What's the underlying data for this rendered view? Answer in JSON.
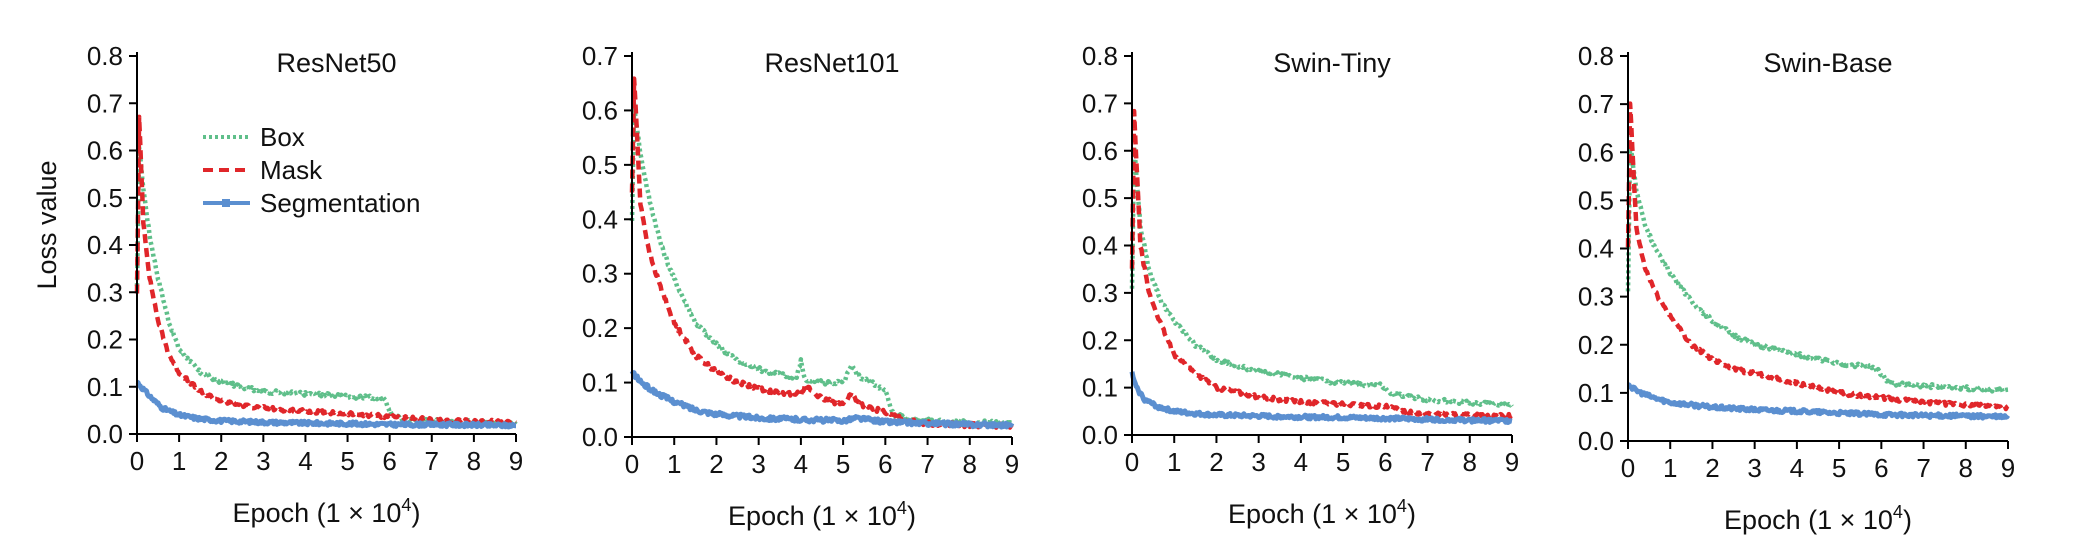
{
  "figure": {
    "ylabel": "Loss value",
    "xlabel_prefix": "Epoch (1 × 10",
    "xlabel_sup": "4",
    "xlabel_suffix": ")"
  },
  "legend": [
    {
      "label": "Box",
      "color": "#5fbf8a",
      "style": "dotted"
    },
    {
      "label": "Mask",
      "color": "#e0262a",
      "style": "dashed"
    },
    {
      "label": "Segmentation",
      "color": "#5b8fd0",
      "style": "solid-marker"
    }
  ],
  "chart_data": [
    {
      "type": "line",
      "title": "ResNet50",
      "xlim": [
        0,
        9
      ],
      "ylim": [
        0,
        0.8
      ],
      "xticks": [
        "0",
        "1",
        "2",
        "3",
        "4",
        "5",
        "6",
        "7",
        "8",
        "9"
      ],
      "yticks": [
        "0.0",
        "0.1",
        "0.2",
        "0.3",
        "0.4",
        "0.5",
        "0.6",
        "0.7",
        "0.8"
      ],
      "series": [
        {
          "name": "Box",
          "x": [
            0,
            0.05,
            0.15,
            0.3,
            0.5,
            0.75,
            1.0,
            1.5,
            2.0,
            2.5,
            3.0,
            4.0,
            5.0,
            5.9,
            6.0,
            6.3,
            7.0,
            8.0,
            9.0
          ],
          "y": [
            0.31,
            0.61,
            0.52,
            0.42,
            0.33,
            0.24,
            0.18,
            0.13,
            0.11,
            0.1,
            0.09,
            0.085,
            0.08,
            0.075,
            0.045,
            0.032,
            0.028,
            0.025,
            0.022
          ]
        },
        {
          "name": "Mask",
          "x": [
            0,
            0.05,
            0.15,
            0.3,
            0.5,
            0.75,
            1.0,
            1.5,
            2.0,
            2.5,
            3.0,
            4.0,
            5.0,
            6.0,
            7.0,
            8.0,
            9.0
          ],
          "y": [
            0.3,
            0.67,
            0.45,
            0.33,
            0.24,
            0.17,
            0.13,
            0.09,
            0.07,
            0.06,
            0.055,
            0.048,
            0.043,
            0.037,
            0.03,
            0.027,
            0.025
          ]
        },
        {
          "name": "Segmentation",
          "x": [
            0,
            0.1,
            0.3,
            0.6,
            1.0,
            1.5,
            2.0,
            3.0,
            4.0,
            5.0,
            6.0,
            7.0,
            8.0,
            9.0
          ],
          "y": [
            0.11,
            0.1,
            0.08,
            0.055,
            0.04,
            0.032,
            0.028,
            0.025,
            0.023,
            0.022,
            0.02,
            0.02,
            0.019,
            0.018
          ]
        }
      ]
    },
    {
      "type": "line",
      "title": "ResNet101",
      "xlim": [
        0,
        9
      ],
      "ylim": [
        0,
        0.7
      ],
      "xticks": [
        "0",
        "1",
        "2",
        "3",
        "4",
        "5",
        "6",
        "7",
        "8",
        "9"
      ],
      "yticks": [
        "0.0",
        "0.1",
        "0.2",
        "0.3",
        "0.4",
        "0.5",
        "0.6",
        "0.7"
      ],
      "series": [
        {
          "name": "Box",
          "x": [
            0,
            0.05,
            0.2,
            0.4,
            0.7,
            1.0,
            1.5,
            2.0,
            2.5,
            3.0,
            3.5,
            3.9,
            4.0,
            4.1,
            4.5,
            5.0,
            5.2,
            5.4,
            5.8,
            6.0,
            6.2,
            7.0,
            8.0,
            9.0
          ],
          "y": [
            0.4,
            0.61,
            0.52,
            0.44,
            0.35,
            0.29,
            0.21,
            0.17,
            0.14,
            0.125,
            0.115,
            0.11,
            0.14,
            0.105,
            0.1,
            0.1,
            0.13,
            0.11,
            0.095,
            0.085,
            0.04,
            0.03,
            0.027,
            0.025
          ]
        },
        {
          "name": "Mask",
          "x": [
            0,
            0.05,
            0.2,
            0.4,
            0.7,
            1.0,
            1.5,
            2.0,
            2.5,
            3.0,
            3.5,
            4.0,
            4.1,
            4.5,
            5.0,
            5.2,
            5.4,
            6.0,
            6.5,
            7.0,
            8.0,
            9.0
          ],
          "y": [
            0.45,
            0.66,
            0.43,
            0.34,
            0.27,
            0.21,
            0.15,
            0.12,
            0.1,
            0.09,
            0.08,
            0.08,
            0.095,
            0.07,
            0.06,
            0.08,
            0.06,
            0.045,
            0.03,
            0.025,
            0.022,
            0.02
          ]
        },
        {
          "name": "Segmentation",
          "x": [
            0,
            0.1,
            0.3,
            0.6,
            1.0,
            1.5,
            2.0,
            3.0,
            4.0,
            5.0,
            5.3,
            6.0,
            7.0,
            8.0,
            9.0
          ],
          "y": [
            0.12,
            0.11,
            0.095,
            0.08,
            0.065,
            0.05,
            0.042,
            0.035,
            0.032,
            0.03,
            0.035,
            0.028,
            0.025,
            0.023,
            0.022
          ]
        }
      ]
    },
    {
      "type": "line",
      "title": "Swin-Tiny",
      "xlim": [
        0,
        9
      ],
      "ylim": [
        0,
        0.8
      ],
      "xticks": [
        "0",
        "1",
        "2",
        "3",
        "4",
        "5",
        "6",
        "7",
        "8",
        "9"
      ],
      "yticks": [
        "0.0",
        "0.1",
        "0.2",
        "0.3",
        "0.4",
        "0.5",
        "0.6",
        "0.7",
        "0.8"
      ],
      "series": [
        {
          "name": "Box",
          "x": [
            0,
            0.05,
            0.2,
            0.4,
            0.7,
            1.0,
            1.5,
            2.0,
            2.5,
            3.0,
            4.0,
            5.0,
            5.9,
            6.2,
            7.0,
            8.0,
            9.0
          ],
          "y": [
            0.31,
            0.61,
            0.44,
            0.35,
            0.28,
            0.24,
            0.19,
            0.16,
            0.145,
            0.135,
            0.12,
            0.11,
            0.105,
            0.085,
            0.075,
            0.068,
            0.062
          ]
        },
        {
          "name": "Mask",
          "x": [
            0,
            0.05,
            0.2,
            0.4,
            0.7,
            1.0,
            1.5,
            2.0,
            2.5,
            3.0,
            4.0,
            5.0,
            6.0,
            6.5,
            7.0,
            8.0,
            9.0
          ],
          "y": [
            0.35,
            0.68,
            0.4,
            0.3,
            0.23,
            0.17,
            0.13,
            0.1,
            0.09,
            0.08,
            0.07,
            0.065,
            0.06,
            0.05,
            0.045,
            0.042,
            0.04
          ]
        },
        {
          "name": "Segmentation",
          "x": [
            0,
            0.1,
            0.3,
            0.6,
            1.0,
            1.5,
            2.0,
            3.0,
            4.0,
            5.0,
            6.0,
            7.0,
            8.0,
            9.0
          ],
          "y": [
            0.13,
            0.1,
            0.075,
            0.06,
            0.05,
            0.045,
            0.042,
            0.04,
            0.038,
            0.037,
            0.035,
            0.033,
            0.031,
            0.03
          ]
        }
      ]
    },
    {
      "type": "line",
      "title": "Swin-Base",
      "xlim": [
        0,
        9
      ],
      "ylim": [
        0,
        0.8
      ],
      "xticks": [
        "0",
        "1",
        "2",
        "3",
        "4",
        "5",
        "6",
        "7",
        "8",
        "9"
      ],
      "yticks": [
        "0.0",
        "0.1",
        "0.2",
        "0.3",
        "0.4",
        "0.5",
        "0.6",
        "0.7",
        "0.8"
      ],
      "series": [
        {
          "name": "Box",
          "x": [
            0,
            0.05,
            0.2,
            0.4,
            0.7,
            1.0,
            1.5,
            2.0,
            2.5,
            3.0,
            4.0,
            5.0,
            5.8,
            6.0,
            6.2,
            7.0,
            8.0,
            9.0
          ],
          "y": [
            0.31,
            0.62,
            0.52,
            0.45,
            0.39,
            0.35,
            0.29,
            0.25,
            0.22,
            0.2,
            0.18,
            0.16,
            0.155,
            0.14,
            0.12,
            0.115,
            0.11,
            0.105
          ]
        },
        {
          "name": "Mask",
          "x": [
            0,
            0.05,
            0.2,
            0.4,
            0.7,
            1.0,
            1.5,
            2.0,
            2.5,
            3.0,
            4.0,
            5.0,
            6.0,
            7.0,
            8.0,
            9.0
          ],
          "y": [
            0.4,
            0.7,
            0.44,
            0.36,
            0.3,
            0.26,
            0.2,
            0.17,
            0.15,
            0.14,
            0.12,
            0.1,
            0.09,
            0.08,
            0.075,
            0.07
          ]
        },
        {
          "name": "Segmentation",
          "x": [
            0,
            0.1,
            0.3,
            0.6,
            1.0,
            1.5,
            2.0,
            3.0,
            4.0,
            5.0,
            6.0,
            7.0,
            8.0,
            9.0
          ],
          "y": [
            0.12,
            0.11,
            0.1,
            0.09,
            0.08,
            0.075,
            0.07,
            0.065,
            0.062,
            0.058,
            0.055,
            0.053,
            0.052,
            0.05
          ]
        }
      ]
    }
  ]
}
